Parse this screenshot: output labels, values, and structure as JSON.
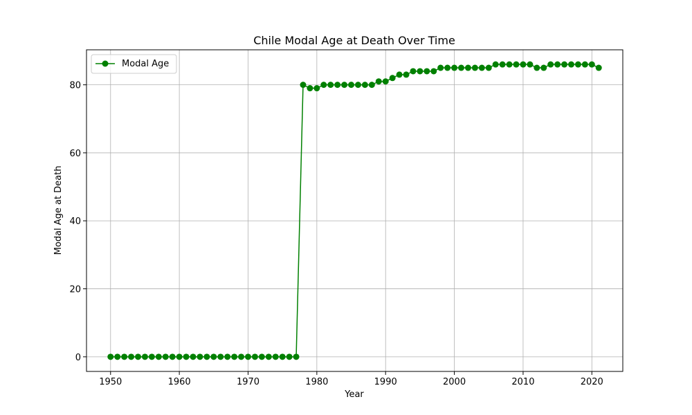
{
  "chart_data": {
    "type": "line",
    "title": "Chile Modal Age at Death Over Time",
    "xlabel": "Year",
    "ylabel": "Modal Age at Death",
    "xlim": [
      1946.5,
      2024.5
    ],
    "ylim": [
      -4.3,
      90.3
    ],
    "xticks": [
      1950,
      1960,
      1970,
      1980,
      1990,
      2000,
      2010,
      2020
    ],
    "yticks": [
      0,
      20,
      40,
      60,
      80
    ],
    "grid": true,
    "legend_position": "top-left",
    "series": [
      {
        "name": "Modal Age",
        "color": "#008000",
        "marker": "circle",
        "x": [
          1950,
          1951,
          1952,
          1953,
          1954,
          1955,
          1956,
          1957,
          1958,
          1959,
          1960,
          1961,
          1962,
          1963,
          1964,
          1965,
          1966,
          1967,
          1968,
          1969,
          1970,
          1971,
          1972,
          1973,
          1974,
          1975,
          1976,
          1977,
          1978,
          1979,
          1980,
          1981,
          1982,
          1983,
          1984,
          1985,
          1986,
          1987,
          1988,
          1989,
          1990,
          1991,
          1992,
          1993,
          1994,
          1995,
          1996,
          1997,
          1998,
          1999,
          2000,
          2001,
          2002,
          2003,
          2004,
          2005,
          2006,
          2007,
          2008,
          2009,
          2010,
          2011,
          2012,
          2013,
          2014,
          2015,
          2016,
          2017,
          2018,
          2019,
          2020,
          2021
        ],
        "y": [
          0,
          0,
          0,
          0,
          0,
          0,
          0,
          0,
          0,
          0,
          0,
          0,
          0,
          0,
          0,
          0,
          0,
          0,
          0,
          0,
          0,
          0,
          0,
          0,
          0,
          0,
          0,
          0,
          80,
          79,
          79,
          80,
          80,
          80,
          80,
          80,
          80,
          80,
          80,
          81,
          81,
          82,
          83,
          83,
          84,
          84,
          84,
          84,
          85,
          85,
          85,
          85,
          85,
          85,
          85,
          85,
          86,
          86,
          86,
          86,
          86,
          86,
          85,
          85,
          86,
          86,
          86,
          86,
          86,
          86,
          86,
          85
        ]
      }
    ]
  }
}
